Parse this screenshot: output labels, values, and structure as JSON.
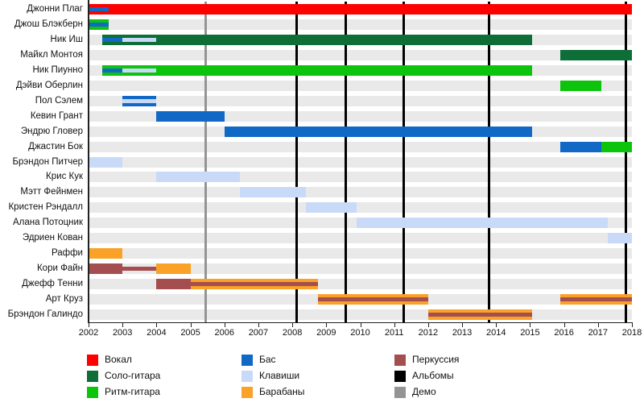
{
  "chart_data": {
    "type": "bar",
    "subtype": "gantt-membership-timeline",
    "x_axis": {
      "start": 2002,
      "end": 2018,
      "tick_interval": 1,
      "tick_labels": [
        "2002",
        "2003",
        "2004",
        "2005",
        "2006",
        "2007",
        "2008",
        "2009",
        "2010",
        "2011",
        "2012",
        "2013",
        "2014",
        "2015",
        "2016",
        "2017",
        "2018"
      ]
    },
    "grid": "off",
    "legend_position": "bottom",
    "roles": {
      "vocals": {
        "label": "Вокал",
        "color": "#fe0000"
      },
      "lead_guitar": {
        "label": "Соло-гитара",
        "color": "#0d6e38"
      },
      "rhythm_guitar": {
        "label": "Ритм-гитара",
        "color": "#0bc40b"
      },
      "bass": {
        "label": "Бас",
        "color": "#1269c5"
      },
      "keys": {
        "label": "Клавиши",
        "color": "#c9daf8"
      },
      "drums": {
        "label": "Барабаны",
        "color": "#f9a227"
      },
      "percussion": {
        "label": "Перкуссия",
        "color": "#a54e50"
      },
      "albums": {
        "label": "Альбомы",
        "color": "#000000"
      },
      "demo": {
        "label": "Демо",
        "color": "#949494"
      }
    },
    "legend_columns": [
      [
        "vocals",
        "lead_guitar",
        "rhythm_guitar"
      ],
      [
        "bass",
        "keys",
        "drums"
      ],
      [
        "percussion",
        "albums",
        "demo"
      ]
    ],
    "members": [
      {
        "name": "Джонни Плаг",
        "bars": [
          {
            "role": "vocals",
            "from": 2002,
            "to": 2018
          }
        ],
        "stripes": [
          {
            "role": "bass",
            "from": 2002,
            "to": 2002.6
          }
        ]
      },
      {
        "name": "Джош Блэкберн",
        "bars": [
          {
            "role": "rhythm_guitar",
            "from": 2002,
            "to": 2002.6
          }
        ],
        "stripes": [
          {
            "role": "bass",
            "from": 2002,
            "to": 2002.6
          }
        ]
      },
      {
        "name": "Ник Иш",
        "bars": [
          {
            "role": "lead_guitar",
            "from": 2002.4,
            "to": 2015.05
          }
        ],
        "stripes": [
          {
            "role": "bass",
            "from": 2002.4,
            "to": 2003
          },
          {
            "role": "keys",
            "from": 2003,
            "to": 2004
          }
        ]
      },
      {
        "name": "Майкл Монтоя",
        "bars": [
          {
            "role": "lead_guitar",
            "from": 2015.9,
            "to": 2018
          }
        ],
        "stripes": []
      },
      {
        "name": "Ник Пиунно",
        "bars": [
          {
            "role": "rhythm_guitar",
            "from": 2002.4,
            "to": 2015.05
          }
        ],
        "stripes": [
          {
            "role": "bass",
            "from": 2002.4,
            "to": 2003
          },
          {
            "role": "keys",
            "from": 2003,
            "to": 2004
          }
        ]
      },
      {
        "name": "Дэйви Оберлин",
        "bars": [
          {
            "role": "rhythm_guitar",
            "from": 2015.9,
            "to": 2017.1
          }
        ],
        "stripes": []
      },
      {
        "name": "Пол Сэлем",
        "bars": [
          {
            "role": "bass",
            "from": 2003,
            "to": 2004
          }
        ],
        "stripes": [
          {
            "role": "keys",
            "from": 2003,
            "to": 2004
          }
        ]
      },
      {
        "name": "Кевин Грант",
        "bars": [
          {
            "role": "bass",
            "from": 2004,
            "to": 2006
          }
        ],
        "stripes": []
      },
      {
        "name": "Эндрю Гловер",
        "bars": [
          {
            "role": "bass",
            "from": 2006,
            "to": 2015.05
          }
        ],
        "stripes": []
      },
      {
        "name": "Джастин Бок",
        "bars": [
          {
            "role": "bass",
            "from": 2015.9,
            "to": 2017.1
          },
          {
            "role": "rhythm_guitar",
            "from": 2017.1,
            "to": 2018
          }
        ],
        "stripes": []
      },
      {
        "name": "Брэндон Питчер",
        "bars": [
          {
            "role": "keys",
            "from": 2002,
            "to": 2003
          }
        ],
        "stripes": []
      },
      {
        "name": "Крис Кук",
        "bars": [
          {
            "role": "keys",
            "from": 2004,
            "to": 2006.45
          }
        ],
        "stripes": []
      },
      {
        "name": "Мэтт Фейнмен",
        "bars": [
          {
            "role": "keys",
            "from": 2006.45,
            "to": 2008.4
          }
        ],
        "stripes": []
      },
      {
        "name": "Кристен Рэндалл",
        "bars": [
          {
            "role": "keys",
            "from": 2008.4,
            "to": 2009.9
          }
        ],
        "stripes": []
      },
      {
        "name": "Алана Потоцник",
        "bars": [
          {
            "role": "keys",
            "from": 2009.9,
            "to": 2017.3
          }
        ],
        "stripes": []
      },
      {
        "name": "Эдриен Кован",
        "bars": [
          {
            "role": "keys",
            "from": 2017.3,
            "to": 2018
          }
        ],
        "stripes": []
      },
      {
        "name": "Раффи",
        "bars": [
          {
            "role": "drums",
            "from": 2002,
            "to": 2003
          }
        ],
        "stripes": []
      },
      {
        "name": "Кори Файн",
        "bars": [
          {
            "role": "percussion",
            "from": 2002,
            "to": 2003
          },
          {
            "role": "drums",
            "from": 2004,
            "to": 2005
          }
        ],
        "stripes": [
          {
            "role": "percussion",
            "from": 2003,
            "to": 2004
          }
        ]
      },
      {
        "name": "Джефф Тенни",
        "bars": [
          {
            "role": "percussion",
            "from": 2004,
            "to": 2005
          },
          {
            "role": "drums",
            "from": 2005,
            "to": 2008.75
          }
        ],
        "stripes": [
          {
            "role": "percussion",
            "from": 2005,
            "to": 2008.75
          }
        ]
      },
      {
        "name": "Арт Круз",
        "bars": [
          {
            "role": "drums",
            "from": 2008.75,
            "to": 2012
          },
          {
            "role": "drums",
            "from": 2015.9,
            "to": 2018
          }
        ],
        "stripes": [
          {
            "role": "percussion",
            "from": 2008.75,
            "to": 2012
          },
          {
            "role": "percussion",
            "from": 2015.9,
            "to": 2018
          }
        ]
      },
      {
        "name": "Брэндон Галиндо",
        "bars": [
          {
            "role": "drums",
            "from": 2012,
            "to": 2015.05
          }
        ],
        "stripes": [
          {
            "role": "percussion",
            "from": 2012,
            "to": 2015.05
          }
        ]
      }
    ],
    "events": [
      {
        "type": "demo",
        "year": 2005.46
      },
      {
        "type": "album",
        "year": 2008.12
      },
      {
        "type": "album",
        "year": 2009.58
      },
      {
        "type": "album",
        "year": 2011.29
      },
      {
        "type": "album",
        "year": 2013.8
      },
      {
        "type": "album",
        "year": 2017.83
      }
    ]
  }
}
